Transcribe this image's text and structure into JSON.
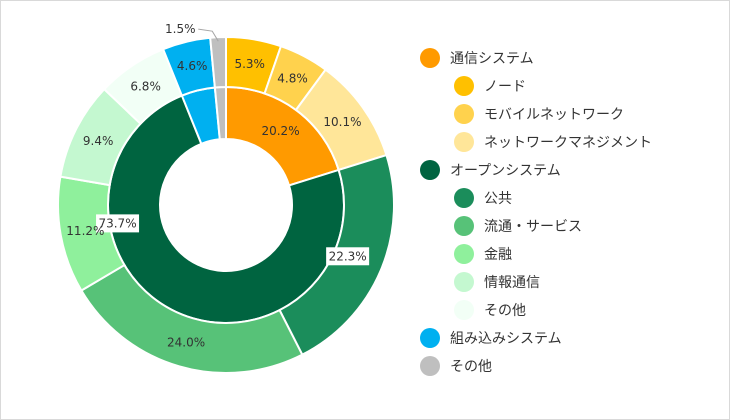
{
  "chart_data": {
    "type": "donut",
    "title": "",
    "inner_ring": [
      {
        "name": "通信システム",
        "value": 20.2,
        "label": "20.2%",
        "color": "#FF9A00"
      },
      {
        "name": "オープンシステム",
        "value": 73.7,
        "label": "73.7%",
        "color": "#006440"
      },
      {
        "name": "組み込みシステム",
        "value": 4.6,
        "label": "4.6%",
        "color": "#00B0F0"
      },
      {
        "name": "その他",
        "value": 1.5,
        "label": "1.5%",
        "color": "#BFBFBF"
      }
    ],
    "outer_ring": [
      {
        "name": "ノード",
        "parent": "通信システム",
        "value": 5.3,
        "label": "5.3%",
        "color": "#FFC000"
      },
      {
        "name": "モバイルネットワーク",
        "parent": "通信システム",
        "value": 4.8,
        "label": "4.8%",
        "color": "#FFD24D"
      },
      {
        "name": "ネットワークマネジメント",
        "parent": "通信システム",
        "value": 10.1,
        "label": "10.1%",
        "color": "#FFE699"
      },
      {
        "name": "公共",
        "parent": "オープンシステム",
        "value": 22.3,
        "label": "22.3%",
        "color": "#1B8D5B"
      },
      {
        "name": "流通・サービス",
        "parent": "オープンシステム",
        "value": 24.0,
        "label": "24.0%",
        "color": "#57C278"
      },
      {
        "name": "金融",
        "parent": "オープンシステム",
        "value": 11.2,
        "label": "11.2%",
        "color": "#8FF09C"
      },
      {
        "name": "情報通信",
        "parent": "オープンシステム",
        "value": 9.4,
        "label": "9.4%",
        "color": "#C4F8D0"
      },
      {
        "name": "その他",
        "parent": "オープンシステム",
        "value": 6.8,
        "label": "6.8%",
        "color": "#F2FFF6"
      },
      {
        "name": "組み込みシステム",
        "parent": "組み込みシステム",
        "value": 4.6,
        "label": "4.6%",
        "color": "#00B0F0"
      },
      {
        "name": "その他",
        "parent": "その他",
        "value": 1.5,
        "label": "1.5%",
        "color": "#BFBFBF"
      }
    ],
    "legend": {
      "placement": "right",
      "items": [
        {
          "label": "通信システム",
          "color": "#FF9A00",
          "level": 0
        },
        {
          "label": "ノード",
          "color": "#FFC000",
          "level": 1
        },
        {
          "label": "モバイルネットワーク",
          "color": "#FFD24D",
          "level": 1
        },
        {
          "label": "ネットワークマネジメント",
          "color": "#FFE699",
          "level": 1
        },
        {
          "label": "オープンシステム",
          "color": "#006440",
          "level": 0
        },
        {
          "label": "公共",
          "color": "#1B8D5B",
          "level": 1
        },
        {
          "label": "流通・サービス",
          "color": "#57C278",
          "level": 1
        },
        {
          "label": "金融",
          "color": "#8FF09C",
          "level": 1
        },
        {
          "label": "情報通信",
          "color": "#C4F8D0",
          "level": 1
        },
        {
          "label": "その他",
          "color": "#F2FFF6",
          "level": 1
        },
        {
          "label": "組み込みシステム",
          "color": "#00B0F0",
          "level": 0
        },
        {
          "label": "その他",
          "color": "#BFBFBF",
          "level": 0
        }
      ]
    }
  }
}
